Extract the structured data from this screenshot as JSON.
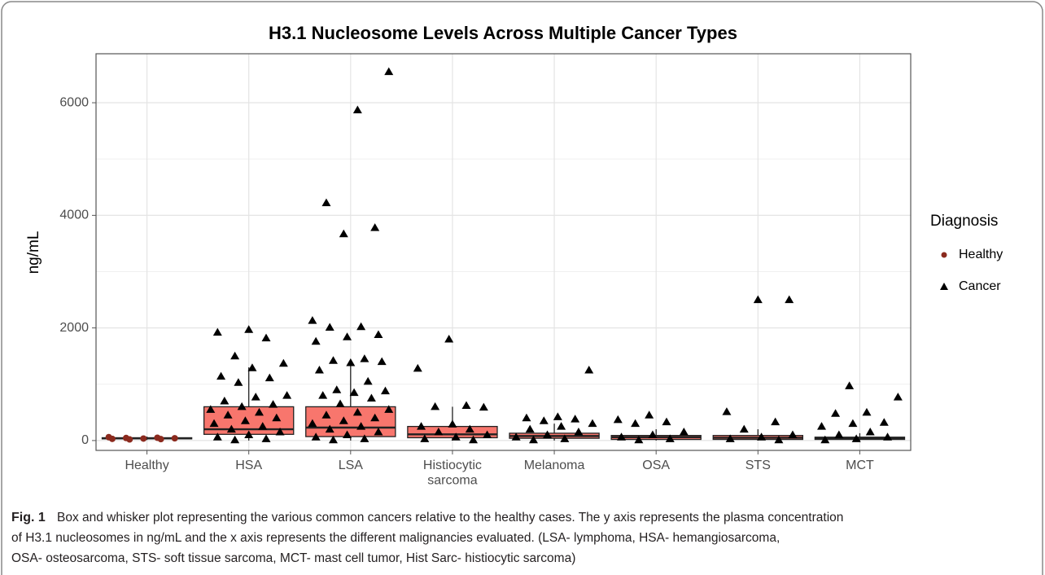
{
  "chart_data": {
    "type": "box",
    "title": "H3.1 Nucleosome Levels Across Multiple Cancer Types",
    "y_label": "ng/mL",
    "categories": [
      "Healthy",
      "HSA",
      "LSA",
      "Histiocytic\nsarcoma",
      "Melanoma",
      "OSA",
      "STS",
      "MCT"
    ],
    "box_color": "#f8766d",
    "boxes": [
      {
        "whisker_low": 10,
        "q1": 30,
        "median": 40,
        "q3": 50,
        "whisker_high": 70
      },
      {
        "whisker_low": 0,
        "q1": 110,
        "median": 200,
        "q3": 600,
        "whisker_high": 1300
      },
      {
        "whisker_low": 0,
        "q1": 70,
        "median": 230,
        "q3": 600,
        "whisker_high": 1360
      },
      {
        "whisker_low": 0,
        "q1": 50,
        "median": 110,
        "q3": 250,
        "whisker_high": 600
      },
      {
        "whisker_low": 0,
        "q1": 40,
        "median": 80,
        "q3": 130,
        "whisker_high": 300
      },
      {
        "whisker_low": 0,
        "q1": 20,
        "median": 60,
        "q3": 90,
        "whisker_high": 200
      },
      {
        "whisker_low": 0,
        "q1": 20,
        "median": 50,
        "q3": 90,
        "whisker_high": 200
      },
      {
        "whisker_low": 0,
        "q1": 20,
        "median": 40,
        "q3": 60,
        "whisker_high": 130
      }
    ],
    "legend_title": "Diagnosis",
    "series": [
      {
        "name": "Healthy",
        "color": "#8b2a1e",
        "marker": "circle",
        "values": [
          [
            60,
            50,
            45,
            40,
            35,
            30,
            25,
            20
          ],
          [],
          [],
          [],
          [],
          [],
          [],
          []
        ]
      },
      {
        "name": "Cancer",
        "color": "#000000",
        "marker": "triangle",
        "values": [
          [],
          [
            1970,
            1920,
            1820,
            1500,
            1370,
            1290,
            1140,
            1110,
            1030,
            800,
            770,
            700,
            640,
            600,
            550,
            500,
            450,
            400,
            350,
            300,
            250,
            200,
            150,
            100,
            60,
            30,
            10
          ],
          [
            6550,
            5870,
            4220,
            3780,
            3670,
            2130,
            2020,
            2010,
            1880,
            1840,
            1760,
            1450,
            1420,
            1400,
            1380,
            1250,
            1050,
            900,
            880,
            850,
            800,
            750,
            650,
            550,
            500,
            450,
            400,
            350,
            300,
            250,
            200,
            150,
            100,
            60,
            30,
            10
          ],
          [
            1800,
            1280,
            620,
            600,
            590,
            290,
            250,
            200,
            150,
            100,
            60,
            30,
            10
          ],
          [
            1250,
            420,
            400,
            380,
            350,
            300,
            250,
            200,
            150,
            100,
            60,
            30,
            10
          ],
          [
            450,
            370,
            330,
            300,
            150,
            100,
            60,
            30,
            10
          ],
          [
            2500,
            2500,
            510,
            330,
            200,
            100,
            60,
            30,
            10
          ],
          [
            970,
            770,
            500,
            480,
            320,
            300,
            250,
            150,
            100,
            60,
            30,
            10
          ]
        ]
      }
    ],
    "ylim": [
      -175,
      6870
    ],
    "yticks": [
      0,
      2000,
      4000,
      6000
    ],
    "minor_yticks": [
      1000,
      3000,
      5000
    ],
    "grid": true
  },
  "caption": {
    "label": "Fig. 1",
    "lines": [
      "Box and whisker plot representing the various common cancers relative to the healthy cases. The y axis represents the plasma concentration",
      "of H3.1 nucleosomes in ng/mL and the x axis represents the different malignancies evaluated. (LSA- lymphoma, HSA- hemangiosarcoma,",
      "OSA- osteosarcoma, STS- soft tissue sarcoma, MCT- mast cell tumor, Hist Sarc- histiocytic sarcoma)"
    ]
  }
}
